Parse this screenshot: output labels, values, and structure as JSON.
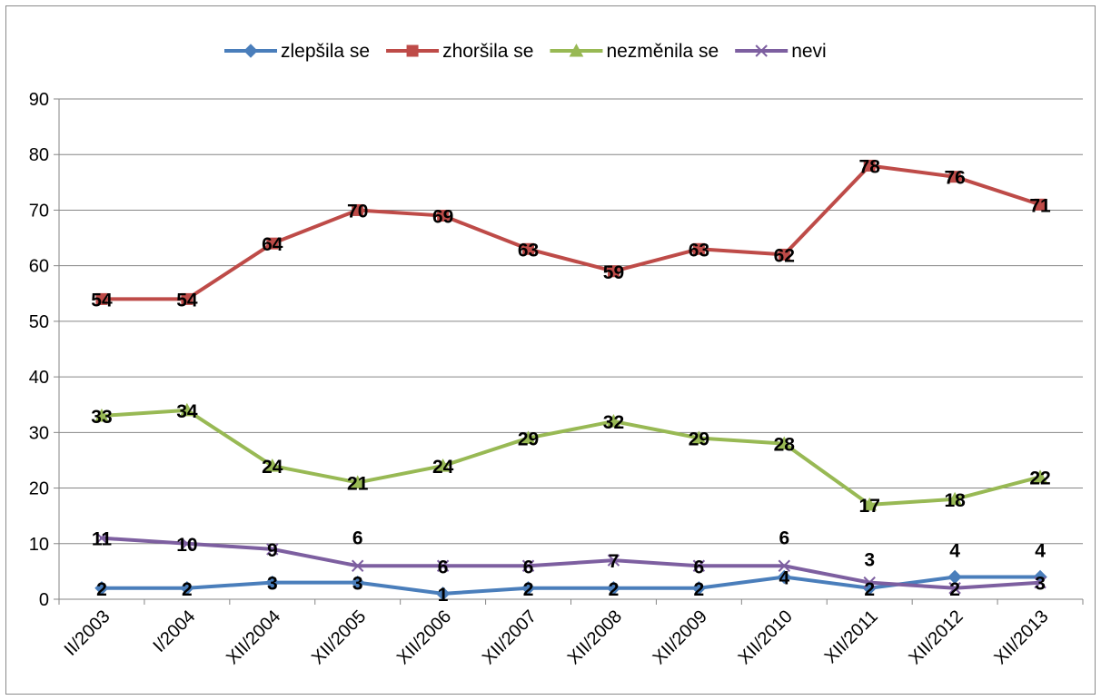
{
  "chart_data": {
    "type": "line",
    "title": "",
    "xlabel": "",
    "ylabel": "",
    "ylim": [
      0,
      90
    ],
    "yticks": [
      0,
      10,
      20,
      30,
      40,
      50,
      60,
      70,
      80,
      90
    ],
    "grid": true,
    "legend_position": "top",
    "categories": [
      "II/2003",
      "I/2004",
      "XII/2004",
      "XII/2005",
      "XII/2006",
      "XII/2007",
      "XII/2008",
      "XII/2009",
      "XII/2010",
      "XII/2011",
      "XII/2012",
      "XII/2013"
    ],
    "series": [
      {
        "name": "zlepšila se",
        "color": "#4a7ebb",
        "marker": "diamond",
        "values": [
          2,
          2,
          3,
          3,
          1,
          2,
          2,
          2,
          4,
          2,
          4,
          4
        ]
      },
      {
        "name": "zhoršila se",
        "color": "#be4b48",
        "marker": "square",
        "values": [
          54,
          54,
          64,
          70,
          69,
          63,
          59,
          63,
          62,
          78,
          76,
          71
        ]
      },
      {
        "name": "nezměnila se",
        "color": "#98b954",
        "marker": "triangle",
        "values": [
          33,
          34,
          24,
          21,
          24,
          29,
          32,
          29,
          28,
          17,
          18,
          22
        ]
      },
      {
        "name": "nevi",
        "color": "#7d5fa0",
        "marker": "x",
        "values": [
          11,
          10,
          9,
          6,
          6,
          6,
          7,
          6,
          6,
          3,
          2,
          3
        ]
      }
    ]
  }
}
